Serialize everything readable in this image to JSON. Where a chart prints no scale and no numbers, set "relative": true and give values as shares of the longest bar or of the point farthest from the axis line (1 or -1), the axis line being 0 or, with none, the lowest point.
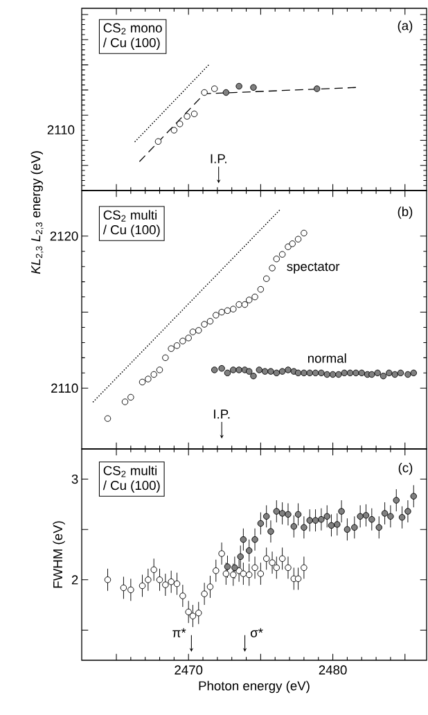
{
  "chart_data": [
    {
      "type": "scatter",
      "relative": true,
      "xlim": [
        2462.6,
        2486.5
      ],
      "xticks": [
        {
          "value": 2465,
          "label": null
        },
        {
          "value": 2470,
          "label": null
        },
        {
          "value": 2475,
          "label": null
        },
        {
          "value": 2480,
          "label": null
        },
        {
          "value": 2485,
          "label": null
        }
      ],
      "tick_labels": false,
      "annotations": [
        "CS$_{2}$ mono",
        "/ Cu (100)",
        "(a)",
        "I.P.",
        "2110"
      ],
      "series": [
        {
          "color": "#ffffff",
          "marker": "circle",
          "x": [
            2467.9,
            2469.0,
            2469.4,
            2469.9,
            2470.4,
            2471.1,
            2471.8
          ],
          "values": [
            0.39,
            0.48,
            0.53,
            0.59,
            0.61,
            0.78,
            0.81
          ]
        },
        {
          "color": "#808080",
          "marker": "circle",
          "x": [
            2472.6,
            2473.5,
            2474.5,
            2478.9
          ],
          "values": [
            0.78,
            0.83,
            0.82,
            0.81
          ]
        },
        {
          "type": "line",
          "color": "#000000",
          "marker": "none",
          "line_style": "dashed",
          "x": [
            2466.6,
            2471.1,
            2481.6
          ],
          "values": [
            0.23,
            0.77,
            0.82
          ]
        },
        {
          "type": "line",
          "color": "#000000",
          "marker": "none",
          "line_style": "dotted",
          "x": [
            2466.3,
            2471.4
          ],
          "values": [
            0.39,
            1.0
          ]
        }
      ]
    },
    {
      "type": "scatter",
      "xlim": [
        2462.6,
        2486.5
      ],
      "ylim": [
        2106,
        2123
      ],
      "ylabel": "*KL*$_{2,3}$ *L*$_{2,3}$  energy  (eV)",
      "xticks": [
        {
          "value": 2465,
          "label": null
        },
        {
          "value": 2470,
          "label": null
        },
        {
          "value": 2475,
          "label": null
        },
        {
          "value": 2480,
          "label": null
        },
        {
          "value": 2485,
          "label": null
        }
      ],
      "yticks": [
        2110,
        {
          "value": 2115,
          "label": null
        },
        2120
      ],
      "tick_labels": "y",
      "annotations": [
        "CS$_{2}$ multi",
        "/ Cu (100)",
        "(b)",
        "I.P."
      ],
      "series": [
        {
          "name": "spectator",
          "color": "#ffffff",
          "marker": "circle",
          "x": [
            2464.4,
            2465.6,
            2466.0,
            2466.8,
            2467.2,
            2467.6,
            2468.0,
            2468.4,
            2468.8,
            2469.2,
            2469.6,
            2470.0,
            2470.3,
            2470.7,
            2471.1,
            2471.5,
            2471.9,
            2472.3,
            2472.7,
            2473.1,
            2473.5,
            2473.9,
            2474.2,
            2474.6,
            2475.0,
            2475.4,
            2475.8,
            2476.1,
            2476.5,
            2476.9,
            2477.2,
            2477.6,
            2478.0
          ],
          "values": [
            2108.0,
            2109.1,
            2109.4,
            2110.4,
            2110.6,
            2110.9,
            2111.2,
            2112.0,
            2112.6,
            2112.8,
            2113.1,
            2113.3,
            2113.7,
            2113.8,
            2114.2,
            2114.4,
            2114.8,
            2115.0,
            2115.1,
            2115.2,
            2115.5,
            2115.5,
            2115.8,
            2116.0,
            2116.5,
            2117.2,
            2117.9,
            2118.5,
            2118.8,
            2119.3,
            2119.5,
            2119.8,
            2120.2
          ]
        },
        {
          "name": "normal",
          "color": "#808080",
          "marker": "circle",
          "x": [
            2471.8,
            2472.3,
            2472.7,
            2473.1,
            2473.5,
            2473.9,
            2474.2,
            2474.5,
            2474.9,
            2475.3,
            2475.7,
            2476.1,
            2476.5,
            2476.9,
            2477.3,
            2477.6,
            2478.0,
            2478.4,
            2478.8,
            2479.2,
            2479.6,
            2480.0,
            2480.4,
            2480.8,
            2481.2,
            2481.6,
            2482.0,
            2482.4,
            2482.7,
            2483.1,
            2483.5,
            2483.9,
            2484.3,
            2484.7,
            2485.2,
            2485.6
          ],
          "values": [
            2111.2,
            2111.3,
            2111.0,
            2111.2,
            2111.2,
            2111.2,
            2111.1,
            2110.8,
            2111.2,
            2111.1,
            2111.1,
            2111.0,
            2111.1,
            2111.2,
            2111.1,
            2111.0,
            2111.0,
            2111.0,
            2111.0,
            2111.0,
            2110.9,
            2110.9,
            2110.9,
            2111.0,
            2111.0,
            2111.0,
            2111.0,
            2110.9,
            2110.9,
            2111.0,
            2110.8,
            2111.0,
            2110.9,
            2111.0,
            2110.9,
            2111.0
          ]
        },
        {
          "type": "line",
          "color": "#000000",
          "marker": "none",
          "line_style": "dotted",
          "x": [
            2463.4,
            2476.3
          ],
          "values": [
            2109.1,
            2121.7
          ]
        }
      ]
    },
    {
      "type": "scatter",
      "xlim": [
        2462.6,
        2486.5
      ],
      "ylim": [
        1.2,
        3.3
      ],
      "xlabel": "Photon energy  (eV)",
      "ylabel": "FWHM  (eV)",
      "xticks": [
        {
          "value": 2465,
          "label": null
        },
        2470,
        {
          "value": 2475,
          "label": null
        },
        2480,
        {
          "value": 2485,
          "label": null
        }
      ],
      "yticks": [
        {
          "value": 1.5,
          "label": null
        },
        2,
        {
          "value": 2.5,
          "label": null
        },
        3
      ],
      "annotations": [
        "CS$_{2}$ multi",
        "/ Cu (100)",
        "(c)",
        "π*",
        "σ*"
      ],
      "series": [
        {
          "color": "#ffffff",
          "marker": "circle",
          "x": [
            2464.4,
            2465.5,
            2466.0,
            2466.8,
            2467.2,
            2467.6,
            2468.0,
            2468.4,
            2468.8,
            2469.2,
            2469.6,
            2470.0,
            2470.3,
            2470.7,
            2471.1,
            2471.5,
            2471.9,
            2472.3,
            2472.6,
            2473.1,
            2473.5,
            2473.8,
            2474.2,
            2474.6,
            2475.0,
            2475.4,
            2475.8,
            2476.1,
            2476.5,
            2476.9,
            2477.3,
            2477.6,
            2478.0
          ],
          "values": [
            2.0,
            1.92,
            1.9,
            1.94,
            2.0,
            2.1,
            2.0,
            1.95,
            1.98,
            1.96,
            1.84,
            1.68,
            1.64,
            1.67,
            1.86,
            1.93,
            2.09,
            2.26,
            2.06,
            2.05,
            2.09,
            2.06,
            2.05,
            2.12,
            2.06,
            2.21,
            2.17,
            2.12,
            2.21,
            2.12,
            2.01,
            2.01,
            2.12
          ],
          "errors": [
            0.11,
            0.11,
            0.11,
            0.11,
            0.11,
            0.11,
            0.11,
            0.11,
            0.11,
            0.11,
            0.11,
            0.11,
            0.11,
            0.11,
            0.11,
            0.11,
            0.11,
            0.11,
            0.11,
            0.11,
            0.11,
            0.11,
            0.11,
            0.11,
            0.11,
            0.11,
            0.11,
            0.11,
            0.11,
            0.11,
            0.11,
            0.11,
            0.11
          ]
        },
        {
          "color": "#808080",
          "marker": "circle",
          "x": [
            2472.7,
            2473.2,
            2473.6,
            2473.8,
            2474.2,
            2474.6,
            2475.0,
            2475.4,
            2475.7,
            2476.1,
            2476.5,
            2476.9,
            2477.3,
            2477.6,
            2478.0,
            2478.4,
            2478.8,
            2479.2,
            2479.6,
            2479.9,
            2480.3,
            2480.6,
            2481.0,
            2481.5,
            2481.9,
            2482.3,
            2482.7,
            2483.2,
            2483.6,
            2484.0,
            2484.4,
            2484.8,
            2485.2,
            2485.6
          ],
          "values": [
            2.13,
            2.12,
            2.23,
            2.4,
            2.29,
            2.4,
            2.56,
            2.63,
            2.48,
            2.68,
            2.66,
            2.65,
            2.53,
            2.65,
            2.52,
            2.59,
            2.59,
            2.6,
            2.63,
            2.54,
            2.55,
            2.68,
            2.5,
            2.52,
            2.63,
            2.64,
            2.6,
            2.52,
            2.66,
            2.63,
            2.79,
            2.62,
            2.68,
            2.83
          ],
          "errors": [
            0.11,
            0.11,
            0.11,
            0.11,
            0.11,
            0.11,
            0.11,
            0.11,
            0.11,
            0.11,
            0.11,
            0.11,
            0.11,
            0.11,
            0.11,
            0.11,
            0.11,
            0.11,
            0.11,
            0.11,
            0.11,
            0.11,
            0.11,
            0.11,
            0.11,
            0.11,
            0.11,
            0.11,
            0.11,
            0.11,
            0.11,
            0.11,
            0.11,
            0.11
          ]
        }
      ]
    }
  ]
}
